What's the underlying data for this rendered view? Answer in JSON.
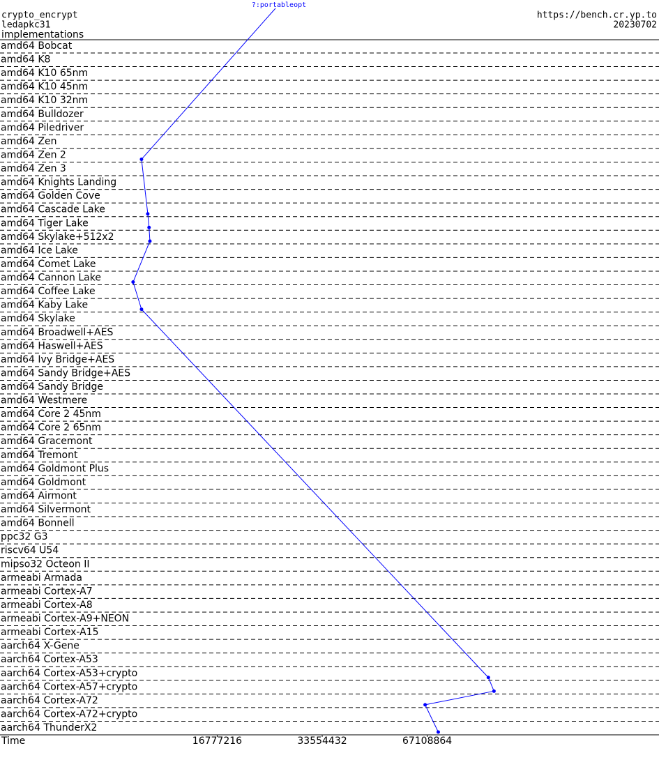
{
  "header": {
    "left": [
      "crypto_encrypt",
      "ledapkc31"
    ],
    "left_label": "implementations",
    "right": [
      "https://bench.cr.yp.to",
      "20230702"
    ]
  },
  "chart_data": {
    "type": "line",
    "categories": [
      "amd64 Bobcat",
      "amd64 K8",
      "amd64 K10 65nm",
      "amd64 K10 45nm",
      "amd64 K10 32nm",
      "amd64 Bulldozer",
      "amd64 Piledriver",
      "amd64 Zen",
      "amd64 Zen 2",
      "amd64 Zen 3",
      "amd64 Knights Landing",
      "amd64 Golden Cove",
      "amd64 Cascade Lake",
      "amd64 Tiger Lake",
      "amd64 Skylake+512x2",
      "amd64 Ice Lake",
      "amd64 Comet Lake",
      "amd64 Cannon Lake",
      "amd64 Coffee Lake",
      "amd64 Kaby Lake",
      "amd64 Skylake",
      "amd64 Broadwell+AES",
      "amd64 Haswell+AES",
      "amd64 Ivy Bridge+AES",
      "amd64 Sandy Bridge+AES",
      "amd64 Sandy Bridge",
      "amd64 Westmere",
      "amd64 Core 2 45nm",
      "amd64 Core 2 65nm",
      "amd64 Gracemont",
      "amd64 Tremont",
      "amd64 Goldmont Plus",
      "amd64 Goldmont",
      "amd64 Airmont",
      "amd64 Silvermont",
      "amd64 Bonnell",
      "ppc32 G3",
      "riscv64 U54",
      "mipso32 Octeon II",
      "armeabi Armada",
      "armeabi Cortex-A7",
      "armeabi Cortex-A8",
      "armeabi Cortex-A9+NEON",
      "armeabi Cortex-A15",
      "aarch64 X-Gene",
      "aarch64 Cortex-A53",
      "aarch64 Cortex-A53+crypto",
      "aarch64 Cortex-A57+crypto",
      "aarch64 Cortex-A72",
      "aarch64 Cortex-A72+crypto",
      "aarch64 ThunderX2"
    ],
    "series": [
      {
        "name": "?:portableopt",
        "color": "#0000ff",
        "values": [
          null,
          null,
          null,
          null,
          null,
          null,
          null,
          null,
          10180000,
          null,
          null,
          null,
          10610000,
          10700000,
          10760000,
          null,
          null,
          9630000,
          null,
          10180000,
          null,
          null,
          null,
          null,
          null,
          null,
          null,
          null,
          null,
          null,
          null,
          null,
          null,
          null,
          null,
          null,
          null,
          null,
          null,
          null,
          null,
          null,
          null,
          null,
          null,
          null,
          100500000,
          104300000,
          66200000,
          null,
          72200000
        ]
      }
    ],
    "xlabel": "Time",
    "xscale": "log",
    "xlim": [
      4000000,
      310000000
    ],
    "xticks": [
      16777216,
      33554432,
      67108864
    ],
    "grid": "dashed"
  }
}
